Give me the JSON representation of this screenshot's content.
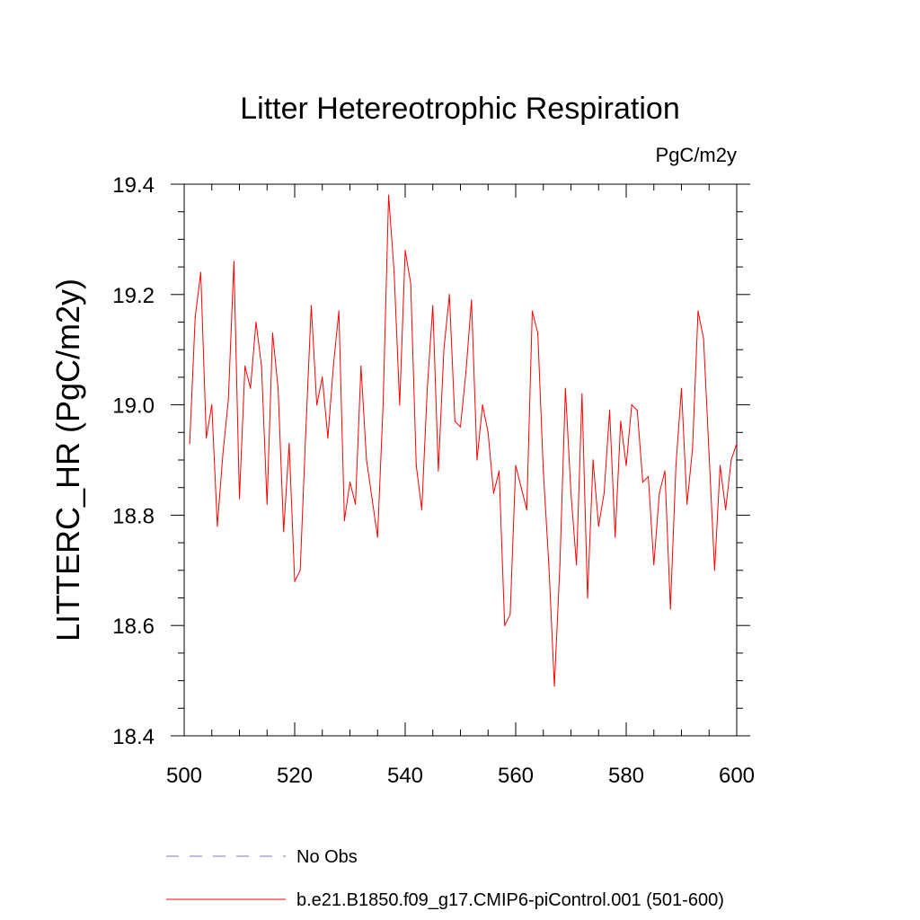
{
  "chart_data": {
    "type": "line",
    "title": "Litter Hetereotrophic Respiration",
    "units": "PgC/m2y",
    "xlabel": "",
    "ylabel": "LITTERC_HR  (PgC/m2y)",
    "xlim": [
      500,
      600
    ],
    "ylim": [
      18.4,
      19.4
    ],
    "xticks": [
      500,
      520,
      540,
      560,
      580,
      600
    ],
    "xtick_labels": [
      "500",
      "520",
      "540",
      "560",
      "580",
      "600"
    ],
    "yticks": [
      18.4,
      18.6,
      18.8,
      19.0,
      19.2,
      19.4
    ],
    "ytick_labels": [
      "18.4",
      "18.6",
      "18.8",
      "19.0",
      "19.2",
      "19.4"
    ],
    "grid": false,
    "legend_position": "bottom",
    "series": [
      {
        "name": "No Obs",
        "color": "#7777cc",
        "style": "dashed",
        "x": [],
        "values": []
      },
      {
        "name": "b.e21.B1850.f09_g17.CMIP6-piControl.001 (501-600)",
        "color": "#ff0000",
        "style": "solid",
        "x": [
          501,
          502,
          503,
          504,
          505,
          506,
          507,
          508,
          509,
          510,
          511,
          512,
          513,
          514,
          515,
          516,
          517,
          518,
          519,
          520,
          521,
          522,
          523,
          524,
          525,
          526,
          527,
          528,
          529,
          530,
          531,
          532,
          533,
          534,
          535,
          536,
          537,
          538,
          539,
          540,
          541,
          542,
          543,
          544,
          545,
          546,
          547,
          548,
          549,
          550,
          551,
          552,
          553,
          554,
          555,
          556,
          557,
          558,
          559,
          560,
          561,
          562,
          563,
          564,
          565,
          566,
          567,
          568,
          569,
          570,
          571,
          572,
          573,
          574,
          575,
          576,
          577,
          578,
          579,
          580,
          581,
          582,
          583,
          584,
          585,
          586,
          587,
          588,
          589,
          590,
          591,
          592,
          593,
          594,
          595,
          596,
          597,
          598,
          599,
          600
        ],
        "values": [
          18.93,
          19.16,
          19.24,
          18.94,
          19.0,
          18.78,
          18.91,
          19.01,
          19.26,
          18.83,
          19.07,
          19.03,
          19.15,
          19.07,
          18.82,
          19.13,
          19.03,
          18.77,
          18.93,
          18.68,
          18.7,
          18.95,
          19.18,
          19.0,
          19.05,
          18.94,
          19.07,
          19.17,
          18.79,
          18.86,
          18.82,
          19.07,
          18.9,
          18.83,
          18.76,
          19.0,
          19.38,
          19.24,
          19.0,
          19.28,
          19.22,
          18.89,
          18.81,
          19.03,
          19.18,
          18.88,
          19.1,
          19.2,
          18.97,
          18.96,
          19.06,
          19.19,
          18.9,
          19.0,
          18.95,
          18.84,
          18.88,
          18.6,
          18.62,
          18.89,
          18.85,
          18.81,
          19.17,
          19.13,
          18.88,
          18.71,
          18.49,
          18.71,
          19.03,
          18.84,
          18.71,
          19.02,
          18.65,
          18.9,
          18.78,
          18.84,
          18.99,
          18.76,
          18.97,
          18.89,
          19.0,
          18.99,
          18.86,
          18.87,
          18.71,
          18.84,
          18.88,
          18.63,
          18.89,
          19.03,
          18.82,
          18.92,
          19.17,
          19.12,
          18.91,
          18.7,
          18.89,
          18.81,
          18.9,
          18.93
        ]
      }
    ]
  }
}
